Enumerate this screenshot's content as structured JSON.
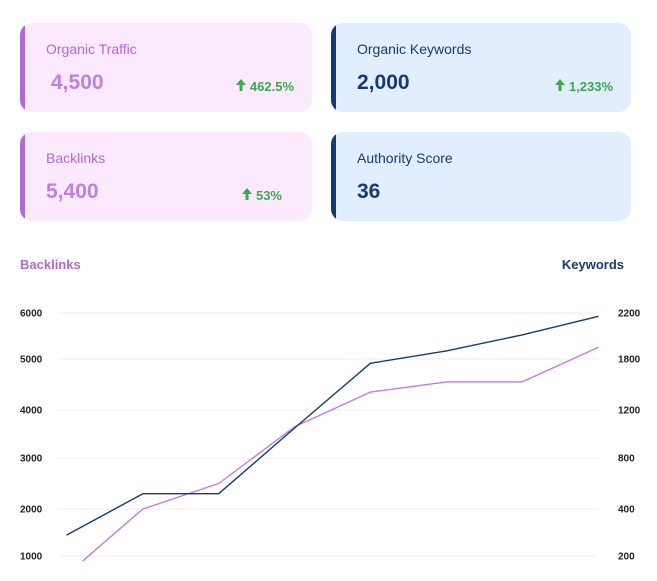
{
  "cards": [
    {
      "title": "Organic Traffic",
      "value": "4,500",
      "change": "462.5%",
      "change_icon": "arrow-up-icon",
      "theme": "pink"
    },
    {
      "title": "Organic Keywords",
      "value": "2,000",
      "change": "1,233%",
      "change_icon": "arrow-up-icon",
      "theme": "blue"
    },
    {
      "title": "Backlinks",
      "value": "5,400",
      "change": "53%",
      "change_icon": "arrow-up-icon",
      "theme": "pink"
    },
    {
      "title": "Authority Score",
      "value": "36",
      "change": "",
      "theme": "blue"
    }
  ],
  "colors": {
    "pink_accent": "#b467d8",
    "pink_bg": "#fbeafe",
    "blue_accent": "#163b72",
    "blue_bg": "#e2eefd",
    "positive": "#3da84d"
  },
  "chart_data": {
    "type": "line",
    "left_axis_label": "Backlinks",
    "right_axis_label": "Keywords",
    "left_ticks": [
      "6000",
      "5000",
      "4000",
      "3000",
      "2000",
      "1000"
    ],
    "right_ticks": [
      "2200",
      "1800",
      "1200",
      "800",
      "400",
      "200"
    ],
    "grid": true,
    "series": [
      {
        "name": "Backlinks",
        "axis": "left",
        "color": "#c57ae0",
        "values": [
          900,
          2000,
          2500,
          3650,
          4350,
          4550,
          4550,
          5250
        ]
      },
      {
        "name": "Keywords",
        "axis": "right",
        "color": "#163b72",
        "values": [
          290,
          520,
          520,
          1050,
          1750,
          1870,
          2010,
          2170
        ]
      }
    ]
  }
}
